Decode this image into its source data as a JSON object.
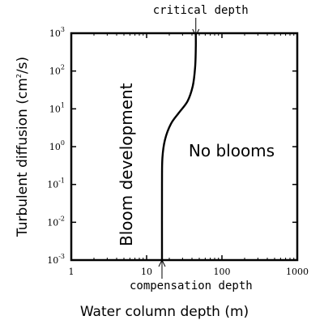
{
  "chart_data": {
    "type": "line",
    "xlabel": "Water column depth (m)",
    "ylabel_parts": {
      "base": "Turbulent diffusion (cm",
      "sup": "2",
      "tail": "/s)"
    },
    "x_scale": "log",
    "y_scale": "log",
    "xlim": [
      1,
      1000
    ],
    "ylim": [
      0.001,
      1000
    ],
    "x_ticks": [
      {
        "value": 1,
        "label": "1"
      },
      {
        "value": 10,
        "label": "10"
      },
      {
        "value": 100,
        "label": "100"
      },
      {
        "value": 1000,
        "label": "1000"
      }
    ],
    "y_ticks": [
      {
        "value": 0.001,
        "base": "10",
        "exp": "-3"
      },
      {
        "value": 0.01,
        "base": "10",
        "exp": "-2"
      },
      {
        "value": 0.1,
        "base": "10",
        "exp": "-1"
      },
      {
        "value": 1,
        "base": "10",
        "exp": "0"
      },
      {
        "value": 10,
        "base": "10",
        "exp": "1"
      },
      {
        "value": 100,
        "base": "10",
        "exp": "2"
      },
      {
        "value": 1000,
        "base": "10",
        "exp": "3"
      }
    ],
    "series": [
      {
        "points": [
          {
            "x": 16,
            "y": 0.001
          },
          {
            "x": 16,
            "y": 0.1
          },
          {
            "x": 16.2,
            "y": 0.5
          },
          {
            "x": 17.5,
            "y": 1.5
          },
          {
            "x": 21,
            "y": 4
          },
          {
            "x": 27,
            "y": 8
          },
          {
            "x": 35,
            "y": 16
          },
          {
            "x": 41,
            "y": 40
          },
          {
            "x": 44,
            "y": 120
          },
          {
            "x": 45,
            "y": 400
          },
          {
            "x": 45,
            "y": 1000
          }
        ]
      }
    ],
    "region_labels": {
      "left": "Bloom development",
      "right": "No blooms"
    },
    "annotations": {
      "top": {
        "text": "critical depth",
        "x": 45
      },
      "bottom": {
        "text": "compensation depth",
        "x": 16
      }
    },
    "grid": false
  }
}
